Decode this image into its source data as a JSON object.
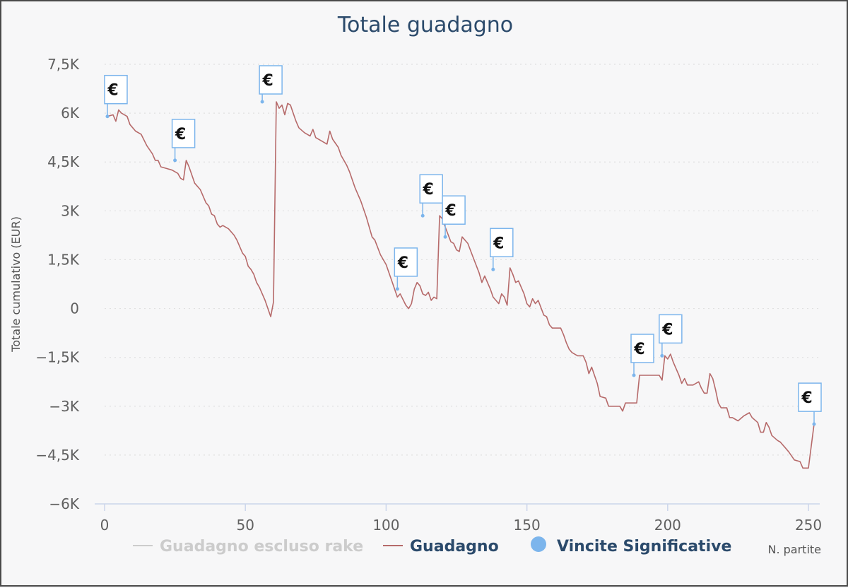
{
  "chart_data": {
    "type": "line",
    "title": "Totale guadagno",
    "ylabel": "Totale cumulativo (EUR)",
    "xlabel": "N. partite",
    "xlim": [
      0,
      252
    ],
    "ylim": [
      -6000,
      7500
    ],
    "x_ticks": [
      0,
      50,
      100,
      150,
      200,
      250
    ],
    "x_tick_labels": [
      "0",
      "50",
      "100",
      "150",
      "200",
      "250"
    ],
    "y_ticks": [
      7500,
      6000,
      4500,
      3000,
      1500,
      0,
      -1500,
      -3000,
      -4500,
      -6000
    ],
    "y_tick_labels": [
      "7,5K",
      "6K",
      "4,5K",
      "3K",
      "1,5K",
      "0",
      "−1,5K",
      "−3K",
      "−4,5K",
      "−6K"
    ],
    "grid": "horizontal dotted",
    "legend_position": "bottom",
    "series": [
      {
        "name": "Guadagno escluso rake",
        "color": "#cccccc",
        "hidden": true,
        "points": []
      },
      {
        "name": "Guadagno",
        "color": "#b66a6a",
        "points": [
          [
            1,
            5900
          ],
          [
            3,
            5950
          ],
          [
            4,
            5750
          ],
          [
            5,
            6100
          ],
          [
            6,
            6000
          ],
          [
            8,
            5900
          ],
          [
            9,
            5650
          ],
          [
            11,
            5450
          ],
          [
            13,
            5350
          ],
          [
            15,
            5000
          ],
          [
            17,
            4750
          ],
          [
            18,
            4550
          ],
          [
            19,
            4550
          ],
          [
            20,
            4350
          ],
          [
            22,
            4300
          ],
          [
            24,
            4250
          ],
          [
            26,
            4150
          ],
          [
            27,
            4000
          ],
          [
            28,
            3950
          ],
          [
            29,
            4550
          ],
          [
            30,
            4350
          ],
          [
            32,
            3850
          ],
          [
            34,
            3650
          ],
          [
            36,
            3250
          ],
          [
            37,
            3150
          ],
          [
            38,
            2900
          ],
          [
            39,
            2850
          ],
          [
            40,
            2600
          ],
          [
            41,
            2500
          ],
          [
            42,
            2550
          ],
          [
            44,
            2450
          ],
          [
            46,
            2250
          ],
          [
            47,
            2100
          ],
          [
            49,
            1700
          ],
          [
            50,
            1600
          ],
          [
            51,
            1300
          ],
          [
            52,
            1200
          ],
          [
            53,
            1050
          ],
          [
            54,
            800
          ],
          [
            55,
            650
          ],
          [
            56,
            450
          ],
          [
            57,
            250
          ],
          [
            58,
            0
          ],
          [
            59,
            -250
          ],
          [
            60,
            200
          ],
          [
            61,
            6350
          ],
          [
            62,
            6150
          ],
          [
            63,
            6250
          ],
          [
            64,
            5950
          ],
          [
            65,
            6300
          ],
          [
            66,
            6250
          ],
          [
            67,
            6000
          ],
          [
            68,
            5750
          ],
          [
            69,
            5550
          ],
          [
            71,
            5400
          ],
          [
            73,
            5300
          ],
          [
            74,
            5500
          ],
          [
            75,
            5250
          ],
          [
            77,
            5150
          ],
          [
            79,
            5050
          ],
          [
            80,
            5450
          ],
          [
            81,
            5200
          ],
          [
            83,
            4950
          ],
          [
            84,
            4700
          ],
          [
            86,
            4400
          ],
          [
            87,
            4200
          ],
          [
            88,
            3950
          ],
          [
            89,
            3700
          ],
          [
            91,
            3300
          ],
          [
            93,
            2800
          ],
          [
            95,
            2200
          ],
          [
            96,
            2100
          ],
          [
            98,
            1650
          ],
          [
            100,
            1350
          ],
          [
            102,
            850
          ],
          [
            104,
            350
          ],
          [
            105,
            450
          ],
          [
            107,
            100
          ],
          [
            108,
            0
          ],
          [
            109,
            150
          ],
          [
            110,
            600
          ],
          [
            111,
            800
          ],
          [
            112,
            700
          ],
          [
            113,
            450
          ],
          [
            114,
            400
          ],
          [
            115,
            500
          ],
          [
            116,
            250
          ],
          [
            117,
            350
          ],
          [
            118,
            300
          ],
          [
            119,
            2850
          ],
          [
            120,
            2750
          ],
          [
            121,
            2500
          ],
          [
            123,
            2050
          ],
          [
            124,
            2000
          ],
          [
            125,
            1800
          ],
          [
            126,
            1750
          ],
          [
            127,
            2200
          ],
          [
            129,
            2000
          ],
          [
            131,
            1550
          ],
          [
            133,
            1100
          ],
          [
            134,
            800
          ],
          [
            135,
            1000
          ],
          [
            137,
            600
          ],
          [
            138,
            350
          ],
          [
            140,
            150
          ],
          [
            141,
            450
          ],
          [
            142,
            350
          ],
          [
            143,
            100
          ],
          [
            144,
            1250
          ],
          [
            145,
            1050
          ],
          [
            146,
            800
          ],
          [
            147,
            850
          ],
          [
            149,
            450
          ],
          [
            150,
            150
          ],
          [
            151,
            50
          ],
          [
            152,
            300
          ],
          [
            153,
            150
          ],
          [
            154,
            250
          ],
          [
            156,
            -200
          ],
          [
            157,
            -250
          ],
          [
            158,
            -500
          ],
          [
            159,
            -600
          ],
          [
            162,
            -600
          ],
          [
            163,
            -800
          ],
          [
            164,
            -1050
          ],
          [
            165,
            -1250
          ],
          [
            166,
            -1350
          ],
          [
            168,
            -1450
          ],
          [
            170,
            -1450
          ],
          [
            171,
            -1650
          ],
          [
            172,
            -2000
          ],
          [
            173,
            -1800
          ],
          [
            174,
            -2050
          ],
          [
            175,
            -2300
          ],
          [
            176,
            -2700
          ],
          [
            178,
            -2750
          ],
          [
            179,
            -3000
          ],
          [
            183,
            -3000
          ],
          [
            184,
            -3150
          ],
          [
            185,
            -2900
          ],
          [
            189,
            -2900
          ],
          [
            190,
            -2050
          ],
          [
            197,
            -2050
          ],
          [
            198,
            -2200
          ],
          [
            199,
            -1450
          ],
          [
            200,
            -1550
          ],
          [
            201,
            -1400
          ],
          [
            202,
            -1650
          ],
          [
            203,
            -1850
          ],
          [
            204,
            -2050
          ],
          [
            205,
            -2300
          ],
          [
            206,
            -2150
          ],
          [
            207,
            -2350
          ],
          [
            209,
            -2350
          ],
          [
            211,
            -2250
          ],
          [
            212,
            -2450
          ],
          [
            213,
            -2600
          ],
          [
            214,
            -2600
          ],
          [
            215,
            -2000
          ],
          [
            216,
            -2150
          ],
          [
            217,
            -2500
          ],
          [
            218,
            -2900
          ],
          [
            219,
            -3050
          ],
          [
            221,
            -3050
          ],
          [
            222,
            -3350
          ],
          [
            223,
            -3350
          ],
          [
            225,
            -3450
          ],
          [
            227,
            -3300
          ],
          [
            229,
            -3200
          ],
          [
            230,
            -3350
          ],
          [
            232,
            -3500
          ],
          [
            233,
            -3800
          ],
          [
            234,
            -3800
          ],
          [
            235,
            -3500
          ],
          [
            236,
            -3650
          ],
          [
            237,
            -3900
          ],
          [
            239,
            -4050
          ],
          [
            240,
            -4100
          ],
          [
            242,
            -4300
          ],
          [
            243,
            -4400
          ],
          [
            245,
            -4650
          ],
          [
            247,
            -4700
          ],
          [
            248,
            -4900
          ],
          [
            250,
            -4900
          ],
          [
            252,
            -3550
          ]
        ]
      },
      {
        "name": "Vincite Significative",
        "color": "#7cb5ec",
        "marker": "€",
        "points": [
          [
            1,
            5900
          ],
          [
            25,
            4550
          ],
          [
            56,
            6350
          ],
          [
            104,
            600
          ],
          [
            113,
            2850
          ],
          [
            121,
            2200
          ],
          [
            138,
            1200
          ],
          [
            188,
            -2050
          ],
          [
            198,
            -1450
          ],
          [
            252,
            -3550
          ]
        ]
      }
    ]
  }
}
